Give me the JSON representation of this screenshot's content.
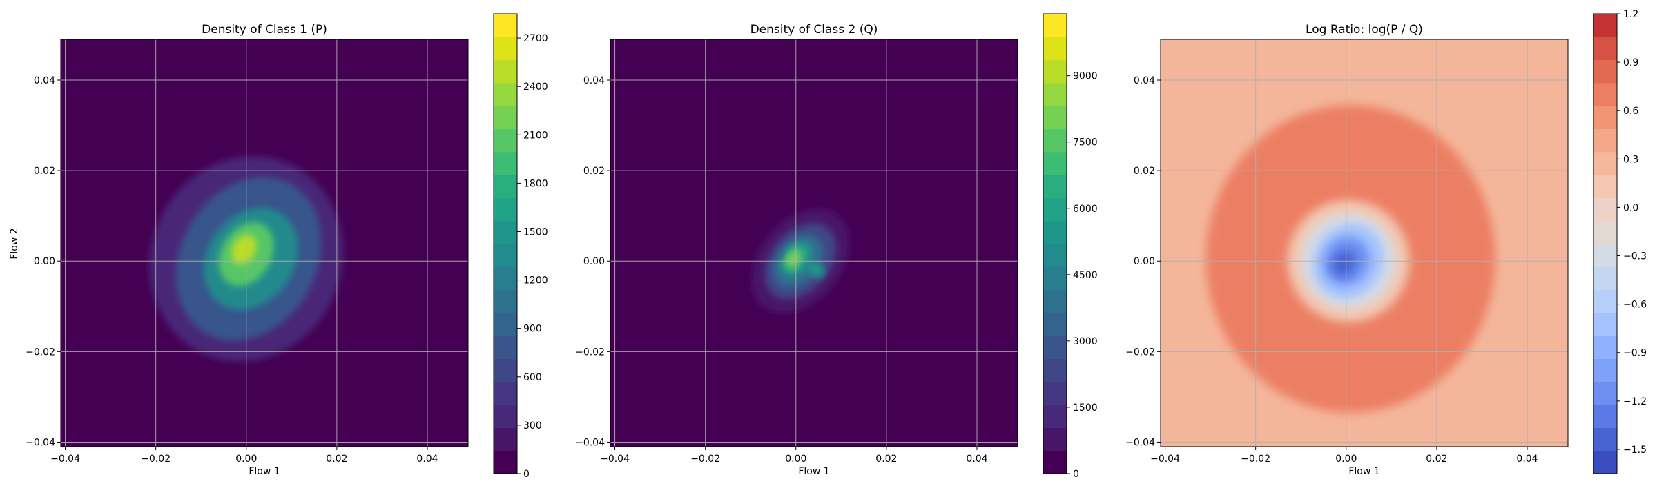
{
  "figure": {
    "background": "#ffffff"
  },
  "chart_data": [
    {
      "type": "heatmap",
      "title": "Density of Class 1 (P)",
      "xlabel": "Flow 1",
      "ylabel": "Flow 2",
      "xlim": [
        -0.041,
        0.049
      ],
      "ylim": [
        -0.041,
        0.049
      ],
      "xticks": [
        -0.04,
        -0.02,
        0.0,
        0.02,
        0.04
      ],
      "yticks": [
        -0.04,
        -0.02,
        0.0,
        0.02,
        0.04
      ],
      "xtick_labels": [
        "−0.04",
        "−0.02",
        "0.00",
        "0.02",
        "0.04"
      ],
      "ytick_labels": [
        "−0.04",
        "−0.02",
        "0.00",
        "0.02",
        "0.04"
      ],
      "grid": true,
      "colormap": "viridis",
      "background_color": "#440154",
      "colorbar": {
        "min": 0,
        "max": 2850,
        "ticks": [
          0,
          300,
          600,
          900,
          1200,
          1500,
          1800,
          2100,
          2400,
          2700
        ],
        "levels": 19,
        "colors": [
          "#440154",
          "#481668",
          "#482878",
          "#453781",
          "#3f4788",
          "#39558c",
          "#32648e",
          "#2d718e",
          "#287d8e",
          "#238a8d",
          "#1f968b",
          "#20a386",
          "#29af7f",
          "#3dbc74",
          "#56c667",
          "#75d054",
          "#95d840",
          "#bade28",
          "#dde318",
          "#fde725"
        ]
      },
      "density_blobs": [
        {
          "cx": 0.0,
          "cy": 0.0005,
          "rx": 0.021,
          "ry": 0.023,
          "rotate": 25,
          "value": 350
        },
        {
          "cx": 0.0005,
          "cy": 0.0005,
          "rx": 0.015,
          "ry": 0.019,
          "rotate": 30,
          "value": 800
        },
        {
          "cx": 0.001,
          "cy": 0.0005,
          "rx": 0.0095,
          "ry": 0.012,
          "rotate": 35,
          "value": 1400
        },
        {
          "cx": 0.0,
          "cy": 0.0015,
          "rx": 0.0055,
          "ry": 0.0075,
          "rotate": 30,
          "value": 2000
        },
        {
          "cx": -0.0005,
          "cy": 0.0025,
          "rx": 0.0025,
          "ry": 0.0035,
          "rotate": 30,
          "value": 2550
        }
      ]
    },
    {
      "type": "heatmap",
      "title": "Density of Class 2 (Q)",
      "xlabel": "Flow 1",
      "ylabel": "",
      "xlim": [
        -0.041,
        0.049
      ],
      "ylim": [
        -0.041,
        0.049
      ],
      "xticks": [
        -0.04,
        -0.02,
        0.0,
        0.02,
        0.04
      ],
      "yticks": [
        -0.04,
        -0.02,
        0.0,
        0.02,
        0.04
      ],
      "xtick_labels": [
        "−0.04",
        "−0.02",
        "0.00",
        "0.02",
        "0.04"
      ],
      "ytick_labels": [
        "−0.04",
        "−0.02",
        "0.00",
        "0.02",
        "0.04"
      ],
      "grid": true,
      "colormap": "viridis",
      "background_color": "#440154",
      "colorbar": {
        "min": 0,
        "max": 10400,
        "ticks": [
          0,
          1500,
          3000,
          4500,
          6000,
          7500,
          9000
        ],
        "levels": 20,
        "colors": [
          "#440154",
          "#481668",
          "#482878",
          "#453781",
          "#3f4788",
          "#39558c",
          "#32648e",
          "#2d718e",
          "#287d8e",
          "#238a8d",
          "#1f968b",
          "#20a386",
          "#29af7f",
          "#3dbc74",
          "#56c667",
          "#75d054",
          "#95d840",
          "#bade28",
          "#dde318",
          "#fde725"
        ]
      },
      "density_blobs": [
        {
          "cx": 0.001,
          "cy": 0.0,
          "rx": 0.009,
          "ry": 0.013,
          "rotate": 40,
          "value": 900
        },
        {
          "cx": 0.001,
          "cy": 0.0,
          "rx": 0.0065,
          "ry": 0.0095,
          "rotate": 40,
          "value": 2200
        },
        {
          "cx": 0.0005,
          "cy": 0.0,
          "rx": 0.0045,
          "ry": 0.0065,
          "rotate": 40,
          "value": 4000
        },
        {
          "cx": 0.0,
          "cy": 0.0005,
          "rx": 0.0028,
          "ry": 0.004,
          "rotate": 35,
          "value": 6000
        },
        {
          "cx": -0.0005,
          "cy": 0.0005,
          "rx": 0.0015,
          "ry": 0.0022,
          "rotate": 30,
          "value": 8200
        },
        {
          "cx": 0.0045,
          "cy": -0.002,
          "rx": 0.002,
          "ry": 0.0015,
          "rotate": 30,
          "value": 5200
        }
      ]
    },
    {
      "type": "heatmap",
      "title": "Log Ratio: log(P / Q)",
      "xlabel": "Flow 1",
      "ylabel": "",
      "xlim": [
        -0.041,
        0.049
      ],
      "ylim": [
        -0.041,
        0.049
      ],
      "xticks": [
        -0.04,
        -0.02,
        0.0,
        0.02,
        0.04
      ],
      "yticks": [
        -0.04,
        -0.02,
        0.0,
        0.02,
        0.04
      ],
      "xtick_labels": [
        "−0.04",
        "−0.02",
        "0.00",
        "0.02",
        "0.04"
      ],
      "ytick_labels": [
        "−0.04",
        "−0.02",
        "0.00",
        "0.02",
        "0.04"
      ],
      "grid": true,
      "colormap": "coolwarm",
      "background_color": "#f4b69b",
      "colorbar": {
        "min": -1.65,
        "max": 1.2,
        "ticks": [
          -1.5,
          -1.2,
          -0.9,
          -0.6,
          -0.3,
          0.0,
          0.3,
          0.6,
          0.9,
          1.2
        ],
        "tick_labels": [
          "−1.5",
          "−1.2",
          "−0.9",
          "−0.6",
          "−0.3",
          "0.0",
          "0.3",
          "0.6",
          "0.9",
          "1.2"
        ],
        "levels": 19,
        "colors": [
          "#3b4cc0",
          "#4a63d3",
          "#5b7ae5",
          "#6c8ff1",
          "#7ea1fa",
          "#90b2fe",
          "#a3c2fe",
          "#b5cff8",
          "#c5d6f2",
          "#d5dbe5",
          "#e2d9d3",
          "#ecd3c5",
          "#f3c7b1",
          "#f6b89c",
          "#f5a889",
          "#f29574",
          "#ec7f63",
          "#e26952",
          "#d65244",
          "#c53334"
        ]
      },
      "density_blobs": [
        {
          "cx": 0.001,
          "cy": 0.0005,
          "rx": 0.032,
          "ry": 0.034,
          "rotate": 0,
          "value": 0.72
        },
        {
          "cx": 0.0005,
          "cy": 0.0,
          "rx": 0.0135,
          "ry": 0.0135,
          "rotate": 30,
          "value": 0.12
        },
        {
          "cx": 0.0005,
          "cy": 0.0,
          "rx": 0.0105,
          "ry": 0.0105,
          "rotate": 30,
          "value": -0.25
        },
        {
          "cx": 0.0005,
          "cy": 0.0,
          "rx": 0.0075,
          "ry": 0.0085,
          "rotate": 30,
          "value": -0.7
        },
        {
          "cx": 0.0,
          "cy": 0.0,
          "rx": 0.005,
          "ry": 0.0055,
          "rotate": 30,
          "value": -1.1
        },
        {
          "cx": -0.0005,
          "cy": -0.0005,
          "rx": 0.0025,
          "ry": 0.003,
          "rotate": 30,
          "value": -1.4
        }
      ]
    }
  ]
}
